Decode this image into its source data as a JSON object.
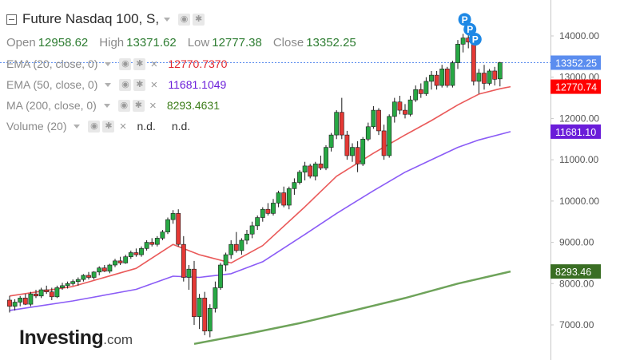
{
  "header": {
    "title": "Future Nasdaq 100, S,",
    "open_label": "Open",
    "open": "12958.62",
    "high_label": "High",
    "high": "13371.62",
    "low_label": "Low",
    "low": "12777.38",
    "close_label": "Close",
    "close": "13352.25"
  },
  "indicators": [
    {
      "label": "EMA (20, close, 0)",
      "value": "12770.7370",
      "color": "#e0262f"
    },
    {
      "label": "EMA (50, close, 0)",
      "value": "11681.1049",
      "color": "#6a1dd9"
    },
    {
      "label": "MA (200, close, 0)",
      "value": "8293.4631",
      "color": "#3c7d1a"
    },
    {
      "label": "Volume (20)",
      "value1": "n.d.",
      "value2": "n.d."
    }
  ],
  "price_tags": [
    {
      "label": "13352.25",
      "value": 13352.25,
      "color": "#5b8def"
    },
    {
      "label": "12770.74",
      "value": 12770.74,
      "color": "#ff0000"
    },
    {
      "label": "11681.10",
      "value": 11681.1,
      "color": "#6a1dd9"
    },
    {
      "label": "8293.46",
      "value": 8293.46,
      "color": "#3a6e24"
    }
  ],
  "markers": [
    "P",
    "P",
    "P"
  ],
  "logo": {
    "main": "Investing",
    "suffix": ".com"
  },
  "colors": {
    "up": "#27a844",
    "down": "#e53935",
    "ema20": "#ea5a5a",
    "ema50": "#8b5cf6",
    "ma200": "#6ea35a",
    "marker": "#1e88e5"
  },
  "chart_data": {
    "type": "candlestick",
    "y_axis": {
      "ticks": [
        "14000.00",
        "13000.00",
        "12000.00",
        "11000.00",
        "10000.00",
        "9000.00",
        "8000.00",
        "7000.00"
      ],
      "range": [
        6300,
        14700
      ]
    },
    "candles": [
      [
        7600,
        7700,
        7300,
        7450
      ],
      [
        7450,
        7620,
        7350,
        7550
      ],
      [
        7550,
        7700,
        7450,
        7650
      ],
      [
        7650,
        7750,
        7480,
        7500
      ],
      [
        7500,
        7800,
        7450,
        7750
      ],
      [
        7750,
        7850,
        7650,
        7700
      ],
      [
        7700,
        7900,
        7650,
        7850
      ],
      [
        7850,
        7950,
        7750,
        7800
      ],
      [
        7800,
        7900,
        7600,
        7680
      ],
      [
        7680,
        7950,
        7650,
        7900
      ],
      [
        7900,
        8020,
        7850,
        7950
      ],
      [
        7950,
        8050,
        7880,
        8000
      ],
      [
        8000,
        8100,
        7950,
        8050
      ],
      [
        8050,
        8150,
        7950,
        8100
      ],
      [
        8100,
        8230,
        8050,
        8200
      ],
      [
        8200,
        8280,
        8100,
        8150
      ],
      [
        8150,
        8300,
        8100,
        8280
      ],
      [
        8280,
        8420,
        8200,
        8380
      ],
      [
        8380,
        8450,
        8280,
        8300
      ],
      [
        8300,
        8480,
        8250,
        8450
      ],
      [
        8450,
        8600,
        8400,
        8550
      ],
      [
        8550,
        8650,
        8450,
        8500
      ],
      [
        8500,
        8700,
        8480,
        8650
      ],
      [
        8650,
        8800,
        8600,
        8750
      ],
      [
        8750,
        8850,
        8650,
        8700
      ],
      [
        8700,
        8900,
        8650,
        8850
      ],
      [
        8850,
        9050,
        8800,
        9000
      ],
      [
        9000,
        9100,
        8900,
        8950
      ],
      [
        8950,
        9150,
        8900,
        9100
      ],
      [
        9100,
        9300,
        9050,
        9250
      ],
      [
        9250,
        9600,
        9200,
        9550
      ],
      [
        9550,
        9780,
        9450,
        9700
      ],
      [
        9700,
        9800,
        8900,
        8950
      ],
      [
        8950,
        9150,
        8050,
        8150
      ],
      [
        8150,
        8450,
        7850,
        8350
      ],
      [
        8350,
        8550,
        7000,
        7200
      ],
      [
        7200,
        7750,
        6900,
        7650
      ],
      [
        7650,
        7800,
        6750,
        6850
      ],
      [
        6850,
        7500,
        6700,
        7400
      ],
      [
        7400,
        8050,
        7300,
        7900
      ],
      [
        7900,
        8500,
        7850,
        8450
      ],
      [
        8450,
        8750,
        8300,
        8700
      ],
      [
        8700,
        9050,
        8600,
        8950
      ],
      [
        8950,
        9250,
        8750,
        8800
      ],
      [
        8800,
        9100,
        8700,
        9050
      ],
      [
        9050,
        9300,
        8950,
        9200
      ],
      [
        9200,
        9500,
        9100,
        9400
      ],
      [
        9400,
        9650,
        9300,
        9600
      ],
      [
        9600,
        9850,
        9500,
        9800
      ],
      [
        9800,
        9950,
        9650,
        9700
      ],
      [
        9700,
        10050,
        9650,
        9950
      ],
      [
        9950,
        10250,
        9850,
        10200
      ],
      [
        10200,
        10350,
        9850,
        9900
      ],
      [
        9900,
        10350,
        9800,
        10300
      ],
      [
        10300,
        10550,
        10150,
        10450
      ],
      [
        10450,
        10750,
        10400,
        10700
      ],
      [
        10700,
        10950,
        10500,
        10850
      ],
      [
        10850,
        10900,
        10550,
        10600
      ],
      [
        10600,
        10950,
        10500,
        10900
      ],
      [
        10900,
        11100,
        10750,
        10800
      ],
      [
        10800,
        11350,
        10750,
        11300
      ],
      [
        11300,
        11650,
        11200,
        11600
      ],
      [
        11600,
        12200,
        11500,
        12150
      ],
      [
        12150,
        12500,
        11500,
        11600
      ],
      [
        11600,
        11700,
        11000,
        11100
      ],
      [
        11100,
        11400,
        10950,
        11300
      ],
      [
        11300,
        11450,
        10700,
        10900
      ],
      [
        10900,
        11550,
        10850,
        11500
      ],
      [
        11500,
        11900,
        11450,
        11800
      ],
      [
        11800,
        12300,
        11750,
        12200
      ],
      [
        12200,
        12250,
        11600,
        11700
      ],
      [
        11700,
        11850,
        11000,
        11100
      ],
      [
        11100,
        12100,
        11050,
        12050
      ],
      [
        12050,
        12500,
        11900,
        12400
      ],
      [
        12400,
        12550,
        12100,
        12200
      ],
      [
        12200,
        12350,
        12000,
        12100
      ],
      [
        12100,
        12550,
        12050,
        12450
      ],
      [
        12450,
        12800,
        12400,
        12700
      ],
      [
        12700,
        12850,
        12500,
        12600
      ],
      [
        12600,
        13000,
        12550,
        12900
      ],
      [
        12900,
        13150,
        12700,
        13050
      ],
      [
        13050,
        13150,
        12700,
        12800
      ],
      [
        12800,
        13300,
        12750,
        13200
      ],
      [
        13200,
        13250,
        12750,
        12800
      ],
      [
        12800,
        13400,
        12750,
        13350
      ],
      [
        13350,
        13900,
        13200,
        13800
      ],
      [
        13800,
        14050,
        13600,
        13950
      ],
      [
        13950,
        14100,
        13700,
        13850
      ],
      [
        13850,
        13900,
        12800,
        12900
      ],
      [
        12900,
        13200,
        12600,
        13100
      ],
      [
        13100,
        13300,
        12700,
        12850
      ],
      [
        12850,
        13200,
        12800,
        13150
      ],
      [
        13150,
        13250,
        12800,
        12950
      ],
      [
        12958.62,
        13371.62,
        12777.38,
        13352.25
      ]
    ],
    "ema20": [
      [
        0,
        7700
      ],
      [
        12,
        7930
      ],
      [
        24,
        8370
      ],
      [
        31,
        8950
      ],
      [
        36,
        8700
      ],
      [
        42,
        8500
      ],
      [
        48,
        8920
      ],
      [
        56,
        9860
      ],
      [
        62,
        10600
      ],
      [
        69,
        11160
      ],
      [
        75,
        11600
      ],
      [
        80,
        11950
      ],
      [
        85,
        12330
      ],
      [
        89,
        12590
      ],
      [
        93,
        12720
      ],
      [
        95,
        12770.74
      ]
    ],
    "ema50": [
      [
        0,
        7350
      ],
      [
        12,
        7580
      ],
      [
        24,
        7860
      ],
      [
        31,
        8180
      ],
      [
        36,
        8150
      ],
      [
        42,
        8240
      ],
      [
        48,
        8530
      ],
      [
        56,
        9190
      ],
      [
        62,
        9700
      ],
      [
        69,
        10250
      ],
      [
        75,
        10700
      ],
      [
        80,
        11000
      ],
      [
        85,
        11300
      ],
      [
        89,
        11480
      ],
      [
        95,
        11681.1
      ]
    ],
    "ma200": [
      [
        35,
        6540
      ],
      [
        45,
        6780
      ],
      [
        55,
        7040
      ],
      [
        65,
        7340
      ],
      [
        75,
        7650
      ],
      [
        85,
        8000
      ],
      [
        95,
        8293.46
      ]
    ]
  }
}
